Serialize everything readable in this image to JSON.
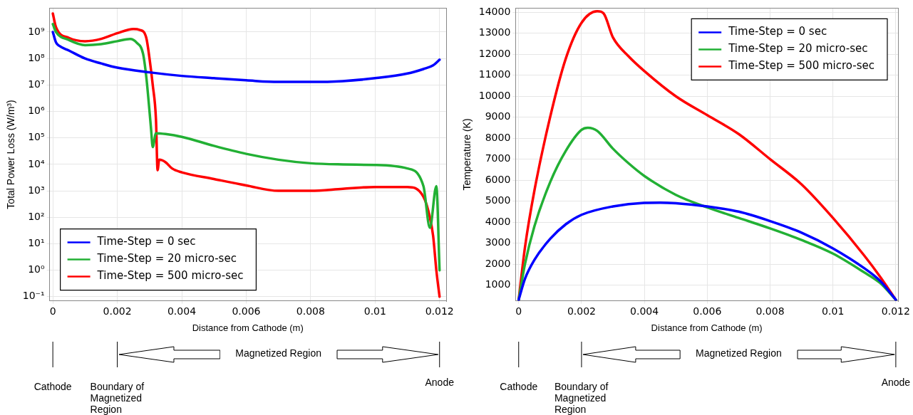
{
  "chart_data": [
    {
      "type": "line",
      "xlabel": "Distance from Cathode (m)",
      "ylabel": "Total Power Loss (W/m³)",
      "log": "y",
      "grid": true,
      "legend": "bottom left",
      "marker": "none",
      "xlim": [
        -0.0001,
        0.0122
      ],
      "xticks": [
        0,
        0.002,
        0.004,
        0.006,
        0.008,
        0.01,
        0.012
      ],
      "ylim": [
        0.07,
        8000000000
      ],
      "yticks": [
        {
          "value": 0.1,
          "label": "10⁻¹"
        },
        {
          "value": 1,
          "label": "10⁰"
        },
        {
          "value": 10,
          "label": "10¹"
        },
        {
          "value": 100,
          "label": "10²"
        },
        {
          "value": 1000,
          "label": "10³"
        },
        {
          "value": 10000,
          "label": "10⁴"
        },
        {
          "value": 100000,
          "label": "10⁵"
        },
        {
          "value": 1000000,
          "label": "10⁶"
        },
        {
          "value": 10000000,
          "label": "10⁷"
        },
        {
          "value": 100000000,
          "label": "10⁸"
        },
        {
          "value": 1000000000,
          "label": "10⁹"
        }
      ],
      "series": [
        {
          "name": "Time-Step = 0 sec",
          "color": "#0000ff",
          "x": [
            0,
            0.0001,
            0.0002,
            0.0005,
            0.001,
            0.0015,
            0.002,
            0.003,
            0.004,
            0.005,
            0.006,
            0.007,
            0.008,
            0.009,
            0.01,
            0.011,
            0.0115,
            0.0118,
            0.012
          ],
          "values": [
            1000000000,
            400000000,
            300000000,
            200000000,
            100000000,
            65000000,
            45000000,
            30000000,
            22000000,
            18000000,
            15000000,
            13000000,
            13000000,
            14000000,
            18000000,
            27000000,
            40000000,
            55000000,
            90000000
          ]
        },
        {
          "name": "Time-Step = 20 micro-sec",
          "color": "#22b034",
          "x": [
            0,
            0.0001,
            0.0005,
            0.001,
            0.0015,
            0.002,
            0.0024,
            0.0026,
            0.0028,
            0.0029,
            0.003,
            0.00305,
            0.0031,
            0.0032,
            0.0035,
            0.004,
            0.005,
            0.006,
            0.007,
            0.008,
            0.009,
            0.01,
            0.011,
            0.0115,
            0.0117,
            0.0119,
            0.012
          ],
          "values": [
            2000000000,
            1000000000,
            500000000,
            320000000,
            350000000,
            450000000,
            550000000,
            400000000,
            150000000,
            20000000,
            1000000,
            200000,
            45000,
            150000,
            140000,
            110000,
            50000,
            25000,
            15000,
            11000,
            10000,
            9500,
            7000,
            1500,
            40,
            1500,
            1
          ]
        },
        {
          "name": "Time-Step = 500 micro-sec",
          "color": "#ff0000",
          "x": [
            0,
            0.0001,
            0.0005,
            0.001,
            0.0015,
            0.002,
            0.0025,
            0.0027,
            0.0029,
            0.003,
            0.0031,
            0.0032,
            0.00325,
            0.0033,
            0.0035,
            0.0037,
            0.004,
            0.005,
            0.006,
            0.007,
            0.008,
            0.009,
            0.01,
            0.011,
            0.0115,
            0.0117,
            0.0118,
            0.0119,
            0.012
          ],
          "values": [
            5000000000,
            1500000000,
            600000000,
            450000000,
            550000000,
            900000000,
            1300000000,
            1200000000,
            600000000,
            100000000,
            10000000,
            500000,
            6000,
            15000,
            12000,
            7000,
            5000,
            2800,
            1600,
            1000,
            1000,
            1200,
            1400,
            1400,
            600,
            100,
            20,
            1,
            0.1
          ]
        }
      ],
      "annotations": [
        "Cathode",
        "Boundary of Magnetized Region",
        "Magnetized Region",
        "Anode"
      ]
    },
    {
      "type": "line",
      "xlabel": "Distance from Cathode (m)",
      "ylabel": "Temperature (K)",
      "grid": true,
      "legend": "top right",
      "marker": "none",
      "xlim": [
        -0.0001,
        0.01207
      ],
      "xticks": [
        0,
        0.002,
        0.004,
        0.006,
        0.008,
        0.01,
        0.012
      ],
      "ylim": [
        250,
        14200
      ],
      "yticks": [
        1000,
        2000,
        3000,
        4000,
        5000,
        6000,
        7000,
        8000,
        9000,
        10000,
        11000,
        12000,
        13000,
        14000
      ],
      "series": [
        {
          "name": "Time-Step = 0 sec",
          "color": "#0000ff",
          "x": [
            0,
            0.0002,
            0.0005,
            0.001,
            0.0015,
            0.002,
            0.003,
            0.004,
            0.0045,
            0.005,
            0.006,
            0.007,
            0.008,
            0.009,
            0.01,
            0.011,
            0.0115,
            0.012
          ],
          "values": [
            300,
            1300,
            2200,
            3200,
            3900,
            4350,
            4750,
            4920,
            4930,
            4900,
            4750,
            4500,
            4050,
            3500,
            2750,
            1800,
            1200,
            300
          ]
        },
        {
          "name": "Time-Step = 20 micro-sec",
          "color": "#22b034",
          "x": [
            0,
            0.0002,
            0.0005,
            0.001,
            0.0015,
            0.002,
            0.0022,
            0.0025,
            0.003,
            0.0035,
            0.004,
            0.005,
            0.006,
            0.007,
            0.008,
            0.009,
            0.01,
            0.011,
            0.0115,
            0.012
          ],
          "values": [
            300,
            2000,
            3800,
            5900,
            7400,
            8400,
            8500,
            8350,
            7500,
            6800,
            6200,
            5300,
            4700,
            4200,
            3700,
            3150,
            2500,
            1600,
            1100,
            300
          ]
        },
        {
          "name": "Time-Step = 500 micro-sec",
          "color": "#ff0000",
          "x": [
            0,
            0.0002,
            0.0005,
            0.001,
            0.0015,
            0.002,
            0.0025,
            0.0027,
            0.003,
            0.0035,
            0.004,
            0.005,
            0.006,
            0.007,
            0.008,
            0.009,
            0.01,
            0.011,
            0.0115,
            0.012
          ],
          "values": [
            300,
            2800,
            5500,
            9000,
            11800,
            13500,
            14050,
            13950,
            12800,
            11900,
            11200,
            10000,
            9100,
            8200,
            7000,
            5800,
            4200,
            2400,
            1400,
            300
          ]
        }
      ],
      "annotations": [
        "Cathode",
        "Boundary of Magnetized Region",
        "Magnetized Region",
        "Anode"
      ]
    }
  ]
}
